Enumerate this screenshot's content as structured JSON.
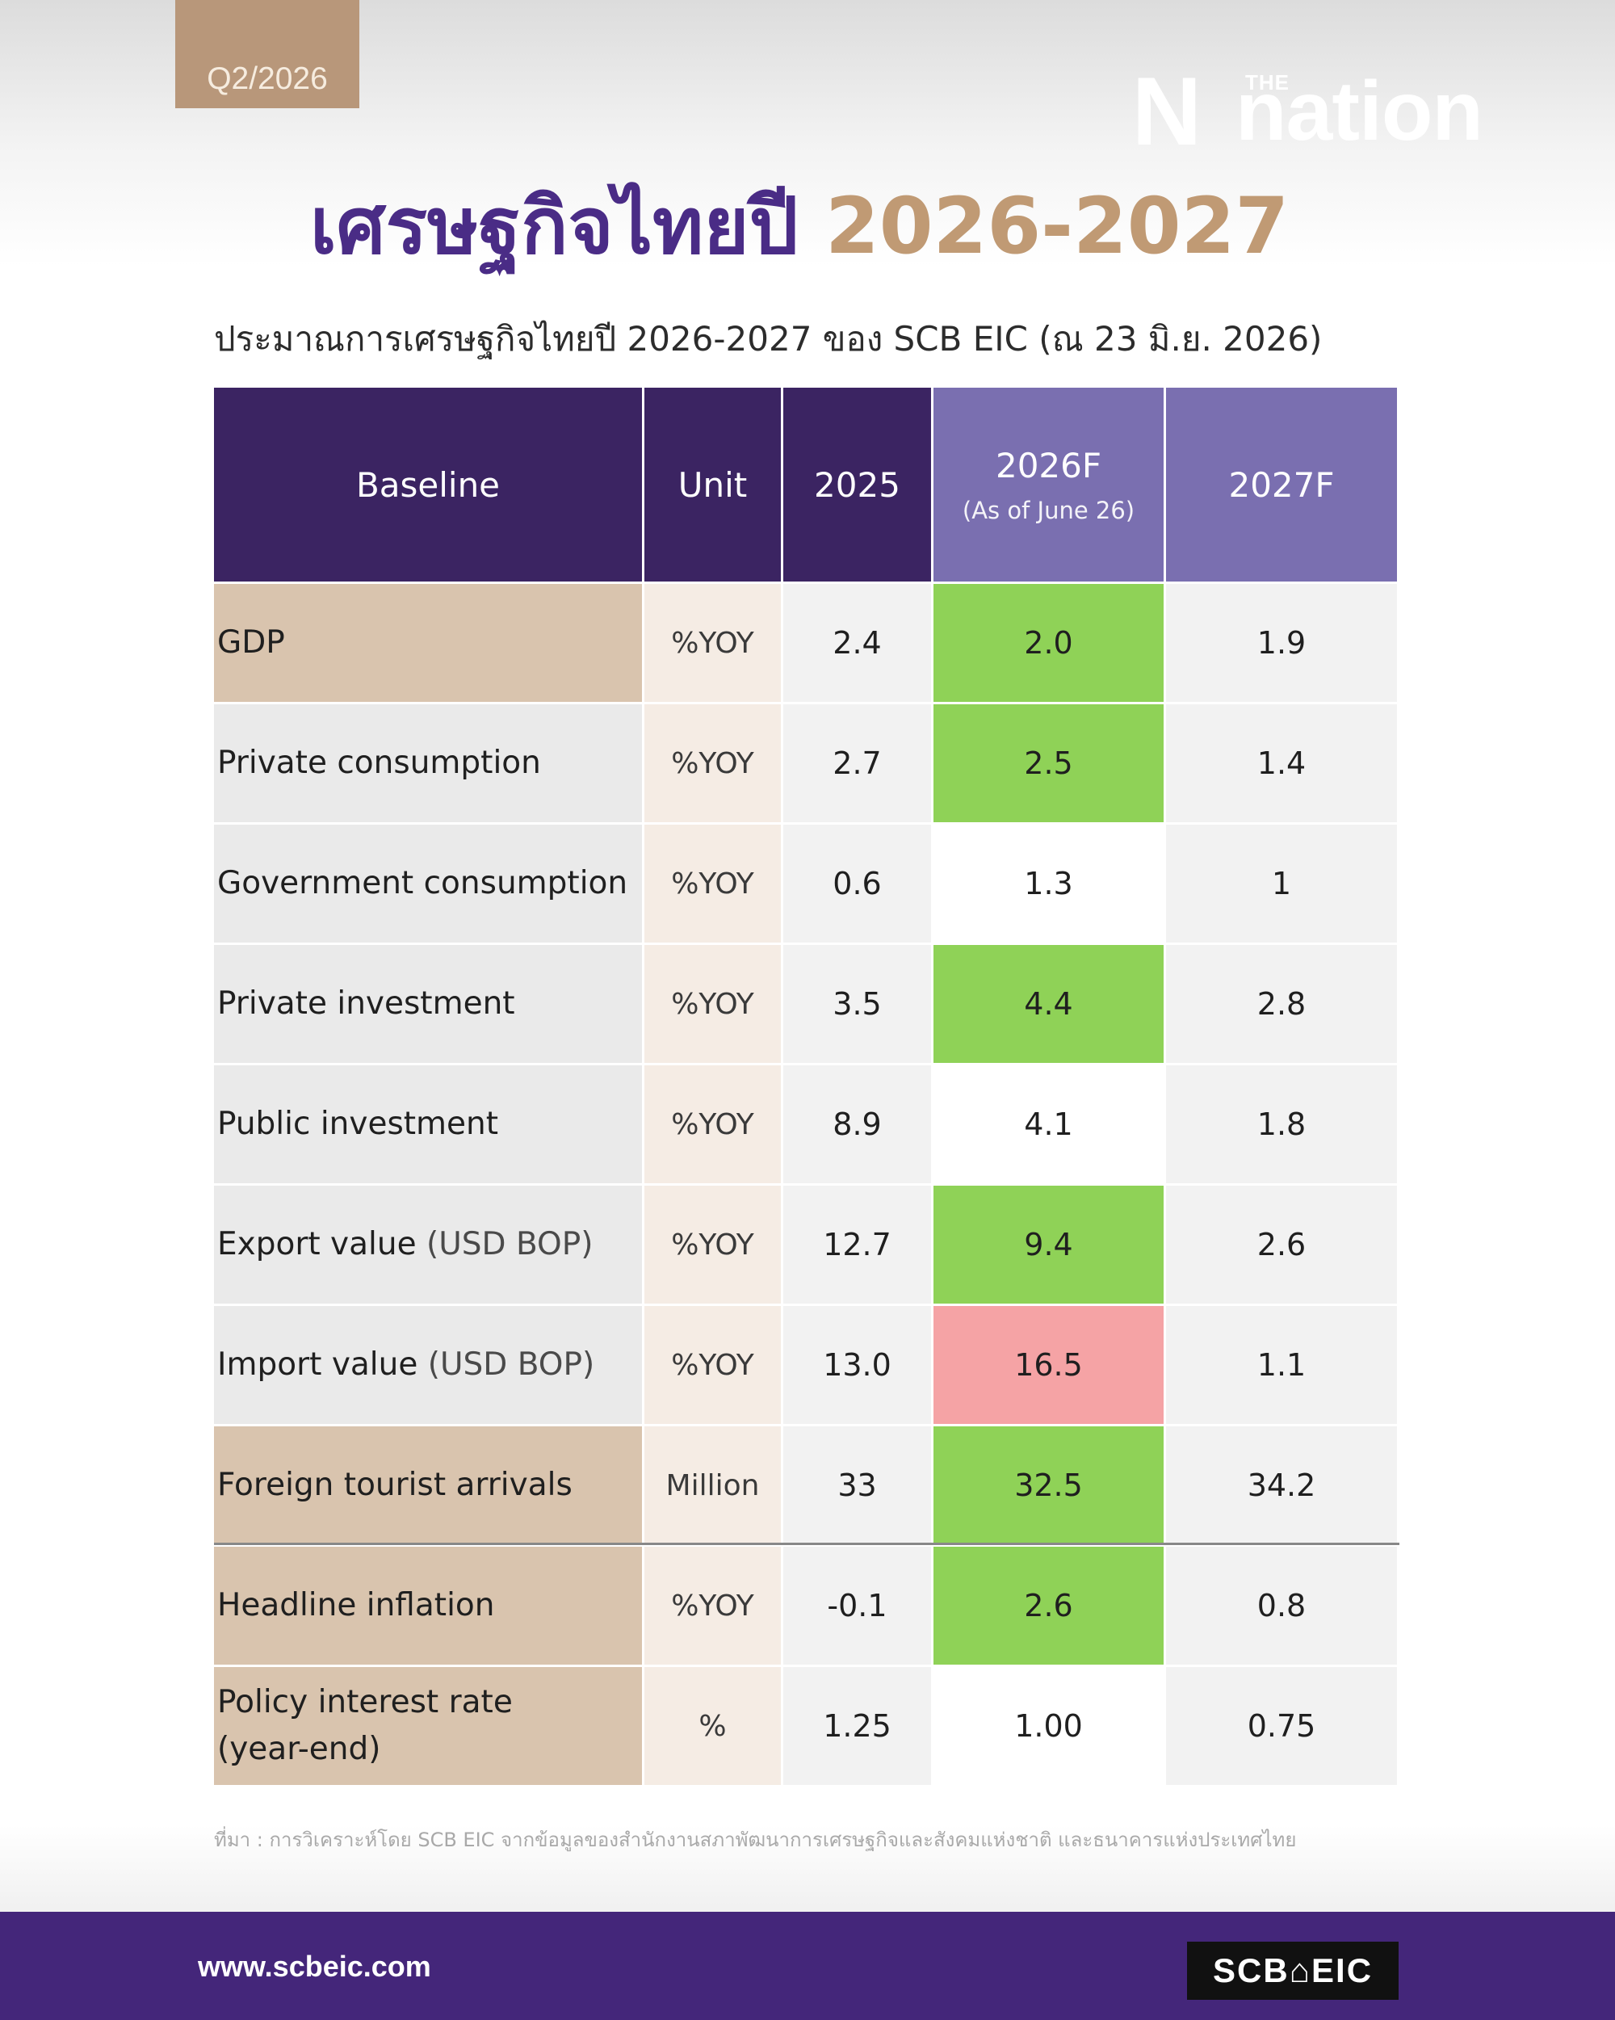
{
  "quarter_tag": "Q2/2026",
  "brand": {
    "small": "THE",
    "name": "nation",
    "mark": "N"
  },
  "title": {
    "thai": "เศรษฐกิจไทยปี",
    "years": "2026-2027"
  },
  "subtitle": "ประมาณการเศรษฐกิจไทยปี 2026-2027 ของ SCB EIC (ณ 23 มิ.ย. 2026)",
  "table": {
    "headers": {
      "baseline": "Baseline",
      "unit": "Unit",
      "y2025": "2025",
      "y2026": "2026F",
      "y2026_note": "(As of June 26)",
      "y2027": "2027F"
    },
    "rows": [
      {
        "label": "GDP",
        "label_note": "",
        "unit": "%YOY",
        "v2025": "2.4",
        "v2026": "2.0",
        "v2027": "1.9"
      },
      {
        "label": "Private consumption",
        "label_note": "",
        "unit": "%YOY",
        "v2025": "2.7",
        "v2026": "2.5",
        "v2027": "1.4"
      },
      {
        "label": "Government consumption",
        "label_note": "",
        "unit": "%YOY",
        "v2025": "0.6",
        "v2026": "1.3",
        "v2027": "1"
      },
      {
        "label": "Private investment",
        "label_note": "",
        "unit": "%YOY",
        "v2025": "3.5",
        "v2026": "4.4",
        "v2027": "2.8"
      },
      {
        "label": "Public investment",
        "label_note": "",
        "unit": "%YOY",
        "v2025": "8.9",
        "v2026": "4.1",
        "v2027": "1.8"
      },
      {
        "label": "Export value",
        "label_note": "(USD BOP)",
        "unit": "%YOY",
        "v2025": "12.7",
        "v2026": "9.4",
        "v2027": "2.6"
      },
      {
        "label": "Import value",
        "label_note": "(USD BOP)",
        "unit": "%YOY",
        "v2025": "13.0",
        "v2026": "16.5",
        "v2027": "1.1"
      },
      {
        "label": "Foreign tourist arrivals",
        "label_note": "",
        "unit": "Million",
        "v2025": "33",
        "v2026": "32.5",
        "v2027": "34.2"
      },
      {
        "label": "Headline inflation",
        "label_note": "",
        "unit": "%YOY",
        "v2025": "-0.1",
        "v2026": "2.6",
        "v2027": "0.8"
      },
      {
        "label": "Policy interest rate",
        "label_note": "(year-end)",
        "unit": "%",
        "v2025": "1.25",
        "v2026": "1.00",
        "v2027": "0.75"
      }
    ]
  },
  "colors": {
    "header_dark": "#3b2462",
    "header_light": "#7a6fb0",
    "tan": "#d9c4ae",
    "green_highlight": "#8fd257",
    "red_highlight": "#f5a3a5",
    "footer": "#44267a"
  },
  "source": "ที่มา : การวิเคราะห์โดย SCB EIC จากข้อมูลของสำนักงานสภาพัฒนาการเศรษฐกิจและสังคมแห่งชาติ และธนาคารแห่งประเทศไทย",
  "footer": {
    "url": "www.scbeic.com",
    "logo": "SCB⌂EIC"
  }
}
